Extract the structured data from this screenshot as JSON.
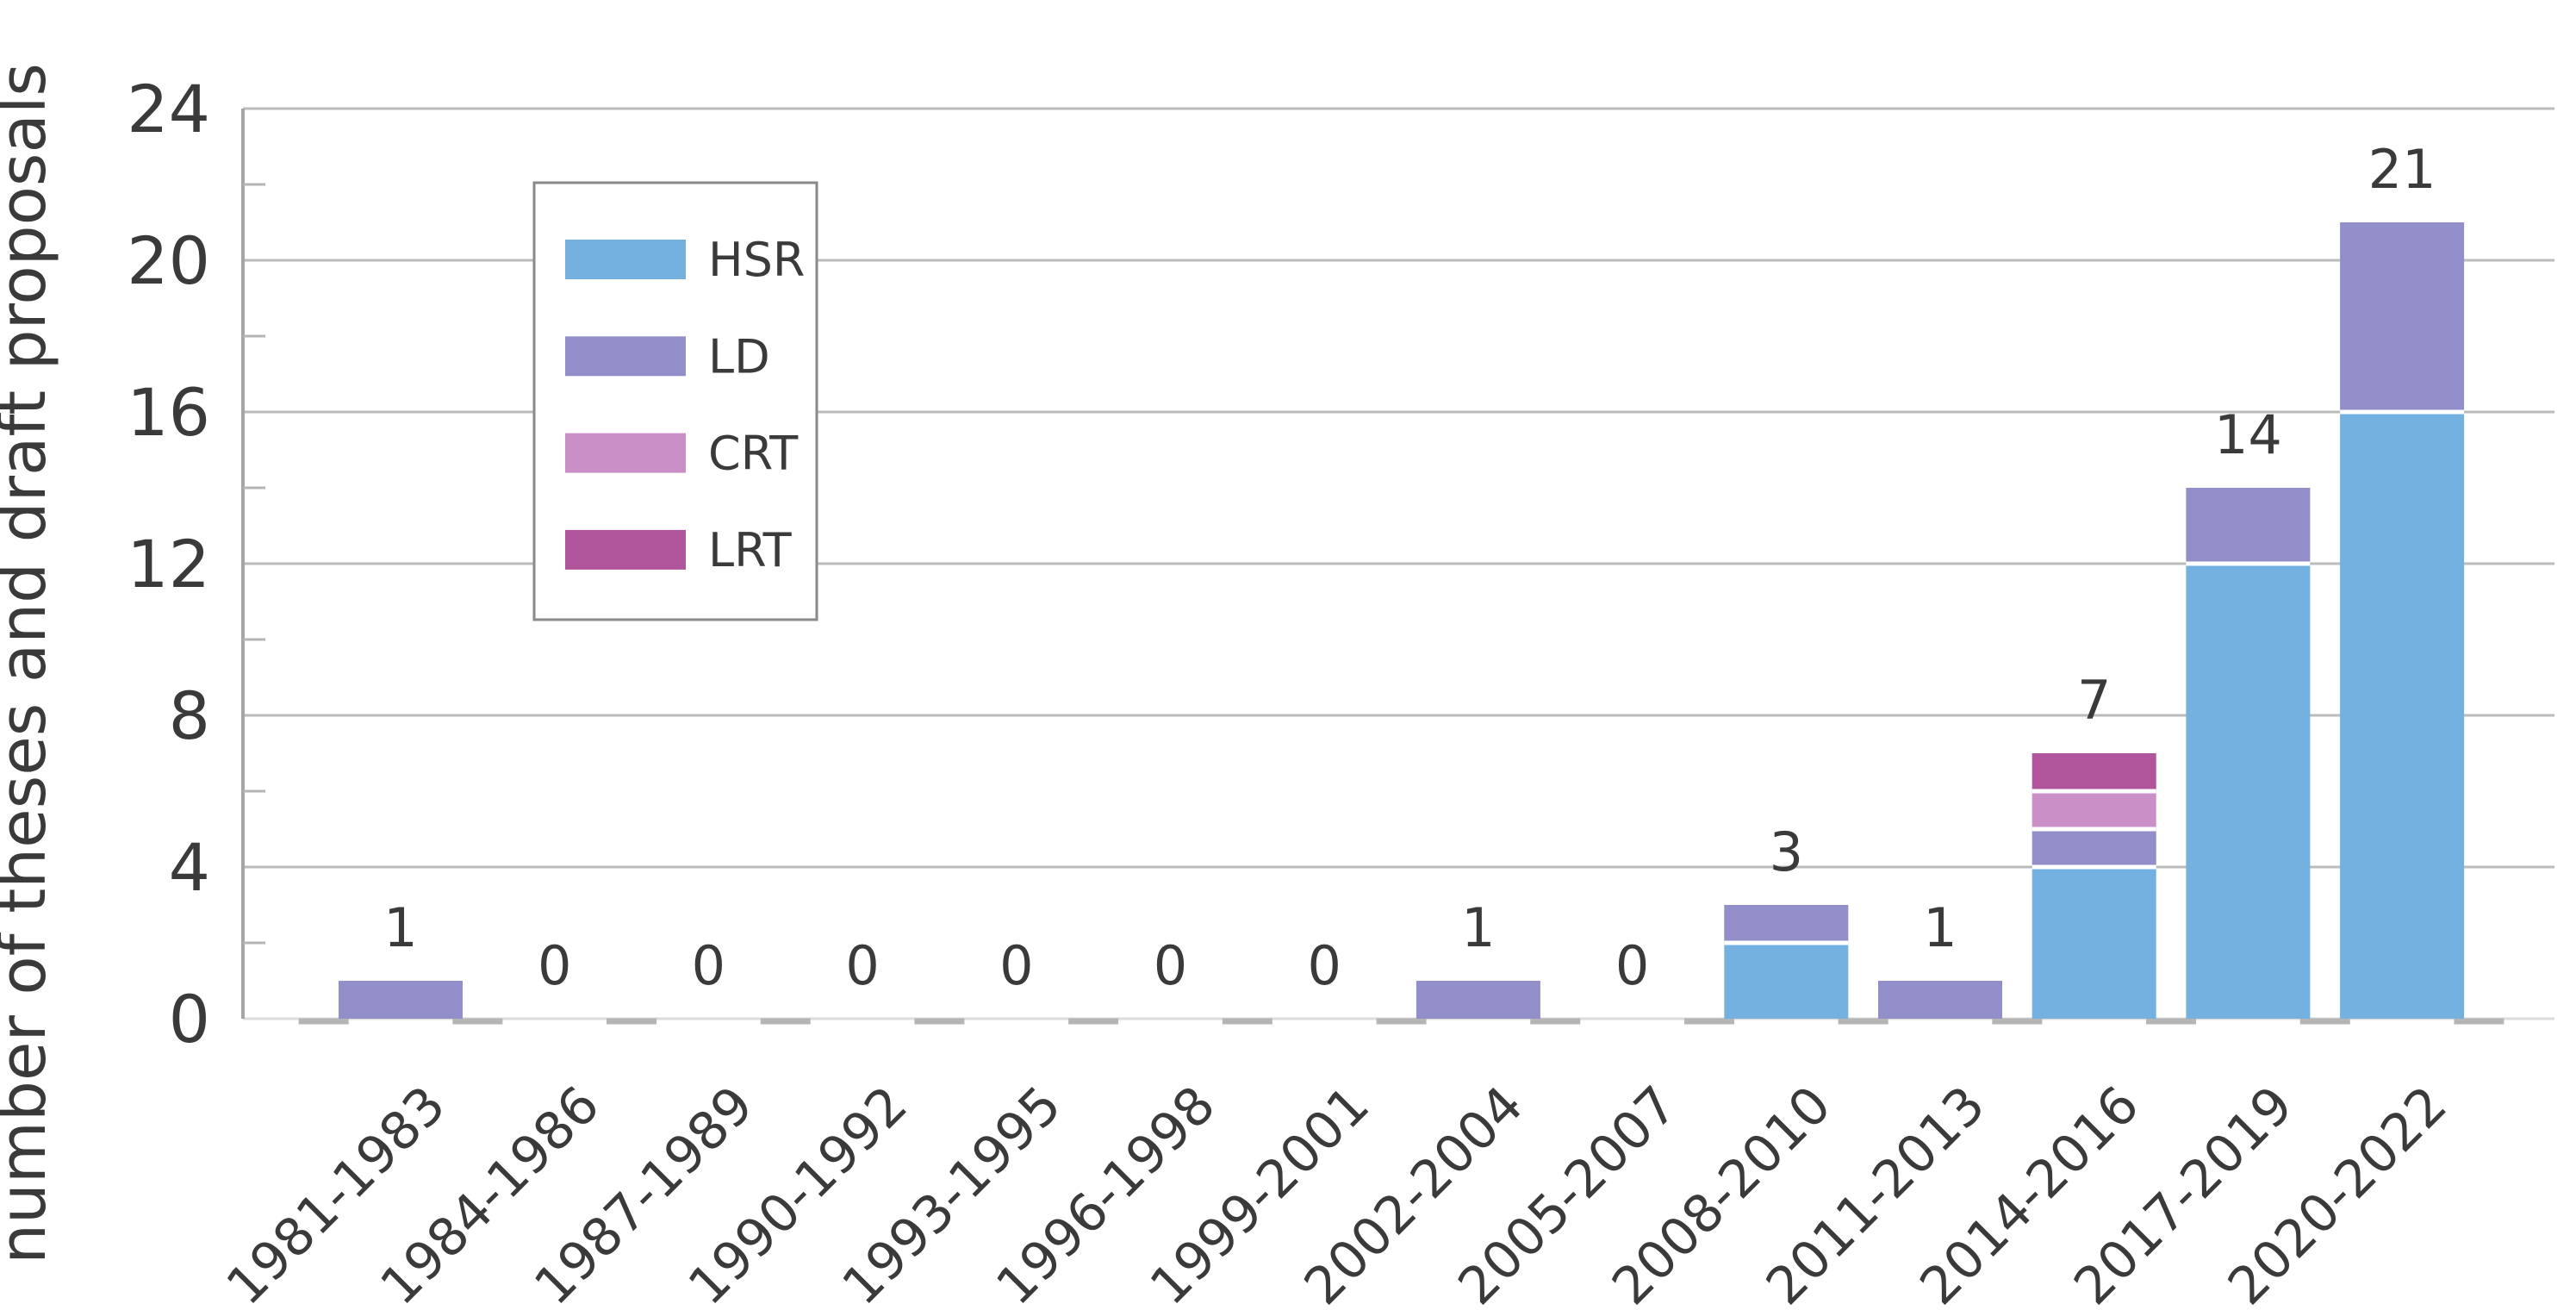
{
  "chart_data": {
    "type": "bar",
    "stacked": true,
    "title": "",
    "ylabel": "number of theses and draft proposals",
    "xlabel": "",
    "ylim": [
      0,
      24
    ],
    "ytick_step": 4,
    "ytick_minor_step": 2,
    "yticks": [
      0,
      4,
      8,
      12,
      16,
      20,
      24
    ],
    "grid": true,
    "legend_position": "upper-left-inside",
    "categories": [
      "1981-1983",
      "1984-1986",
      "1987-1989",
      "1990-1992",
      "1993-1995",
      "1996-1998",
      "1999-2001",
      "2002-2004",
      "2005-2007",
      "2008-2010",
      "2011-2013",
      "2014-2016",
      "2017-2019",
      "2020-2022"
    ],
    "series": [
      {
        "name": "HSR",
        "color": "#74b1e1",
        "values": [
          0,
          0,
          0,
          0,
          0,
          0,
          0,
          0,
          0,
          2,
          0,
          4,
          12,
          16
        ]
      },
      {
        "name": "LD",
        "color": "#928ec9",
        "values": [
          1,
          0,
          0,
          0,
          0,
          0,
          0,
          1,
          0,
          1,
          1,
          1,
          2,
          5
        ]
      },
      {
        "name": "CRT",
        "color": "#c98fc6",
        "values": [
          0,
          0,
          0,
          0,
          0,
          0,
          0,
          0,
          0,
          0,
          0,
          1,
          0,
          0
        ]
      },
      {
        "name": "LRT",
        "color": "#b0549c",
        "values": [
          0,
          0,
          0,
          0,
          0,
          0,
          0,
          0,
          0,
          0,
          0,
          1,
          0,
          0
        ]
      }
    ],
    "totals": [
      1,
      0,
      0,
      0,
      0,
      0,
      0,
      1,
      0,
      3,
      1,
      7,
      14,
      21
    ],
    "colors": {
      "grid": "#babbbd",
      "axis": "#a5a5a5",
      "baseline": "#dcdcdc",
      "boundary_tick": "#b5b5b5",
      "legend_border": "#8a8a8a",
      "text": "#3a3a3a",
      "segment_separator": "#ffffff"
    }
  }
}
